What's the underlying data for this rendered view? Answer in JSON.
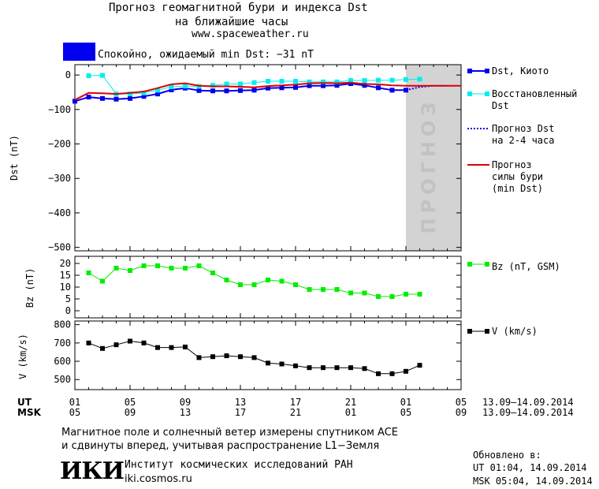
{
  "header": {
    "title_line1": "Прогноз геомагнитной бури и индекса Dst",
    "title_line2": "на ближайшие часы",
    "site": "www.spaceweather.ru",
    "status_color": "#0000ee",
    "status_text": "Спокойно, ожидаемый min Dst: −31 nT"
  },
  "legend": {
    "dst_kyoto": "Dst, Киото",
    "restored_1": "Восстановленный",
    "restored_2": "Dst",
    "forecast_1": "Прогноз Dst",
    "forecast_2": "на 2-4 часа",
    "storm_1": "Прогноз",
    "storm_2": "силы бури",
    "storm_3": "(min Dst)",
    "bz": "Bz (nT, GSM)",
    "v": "V (km/s)"
  },
  "forecast_band_label": "ПРОГНОЗ",
  "time_axis": {
    "ut_label": "UT",
    "msk_label": "MSK",
    "ut_ticks": [
      "01",
      "05",
      "09",
      "13",
      "17",
      "21",
      "01",
      "05"
    ],
    "msk_ticks": [
      "05",
      "09",
      "13",
      "17",
      "21",
      "01",
      "05",
      "09"
    ],
    "ut_range": "13.09–14.09.2014",
    "msk_range": "13.09–14.09.2014"
  },
  "footer": {
    "note_1": "Магнитное поле и солнечный ветер измерены спутником ACE",
    "note_2": "и сдвинуты вперед, учитывая распространение L1−Земля",
    "logo_text": "ИКИ",
    "institute": "Институт космических исследований РАН",
    "institute_url": "iki.cosmos.ru",
    "updated_label": "Обновлено в:",
    "updated_ut": "UT  01:04, 14.09.2014",
    "updated_msk": "MSK 05:04, 14.09.2014"
  },
  "chart_data": [
    {
      "type": "line",
      "ylabel": "Dst (nT)",
      "ylim": [
        -510,
        30
      ],
      "xlim": [
        0,
        28
      ],
      "yticks": [
        0,
        -100,
        -200,
        -300,
        -400,
        -500
      ],
      "ytick_labels": [
        "0",
        "−100",
        "−200",
        "−300",
        "−400",
        "−500"
      ],
      "forecast_band": [
        24,
        28
      ],
      "series": [
        {
          "name": "Dst, Киото",
          "color": "#0000ee",
          "marker": "square",
          "x": [
            0,
            1,
            2,
            3,
            4,
            5,
            6,
            7,
            8,
            9,
            10,
            11,
            12,
            13,
            14,
            15,
            16,
            17,
            18,
            19,
            20,
            21,
            22,
            23,
            24
          ],
          "y": [
            -76,
            -64,
            -68,
            -70,
            -68,
            -62,
            -55,
            -43,
            -38,
            -45,
            -46,
            -46,
            -45,
            -44,
            -38,
            -37,
            -36,
            -31,
            -31,
            -30,
            -25,
            -30,
            -37,
            -44,
            -44
          ]
        },
        {
          "name": "Восстановленный Dst",
          "color": "#00eeee",
          "marker": "square",
          "x": [
            1,
            2,
            3,
            4,
            5,
            6,
            7,
            8,
            9,
            10,
            11,
            12,
            13,
            14,
            15,
            16,
            17,
            18,
            19,
            20,
            21,
            22,
            23,
            24,
            25
          ],
          "y": [
            -2,
            -1,
            -55,
            -55,
            -52,
            -44,
            -34,
            -32,
            -33,
            -30,
            -26,
            -26,
            -22,
            -18,
            -18,
            -18,
            -20,
            -20,
            -20,
            -16,
            -16,
            -15,
            -15,
            -13,
            -12
          ]
        },
        {
          "name": "Прогноз Dst на 2-4 часа",
          "color": "#0000ee",
          "dash": true,
          "x": [
            24,
            25,
            26,
            27
          ],
          "y": [
            -44,
            -35,
            -31,
            -31
          ]
        },
        {
          "name": "Прогноз силы бури (min Dst)",
          "color": "#dd0000",
          "x": [
            0,
            1,
            2,
            3,
            4,
            5,
            6,
            7,
            8,
            9,
            10,
            11,
            12,
            13,
            14,
            15,
            16,
            17,
            18,
            19,
            20,
            21,
            22,
            23,
            24,
            25,
            26,
            27,
            28
          ],
          "y": [
            -72,
            -52,
            -53,
            -55,
            -52,
            -48,
            -38,
            -27,
            -24,
            -31,
            -33,
            -33,
            -34,
            -36,
            -32,
            -30,
            -28,
            -24,
            -23,
            -24,
            -22,
            -26,
            -27,
            -30,
            -31,
            -31,
            -31,
            -31,
            -31
          ]
        }
      ]
    },
    {
      "type": "line",
      "ylabel": "Bz (nT)",
      "ylim": [
        -3,
        23
      ],
      "xlim": [
        0,
        28
      ],
      "yticks": [
        0,
        5,
        10,
        15,
        20
      ],
      "ytick_labels": [
        "0",
        "5",
        "10",
        "15",
        "20"
      ],
      "series": [
        {
          "name": "Bz (nT, GSM)",
          "color": "#00ee00",
          "marker": "square",
          "x": [
            1,
            2,
            3,
            4,
            5,
            6,
            7,
            8,
            9,
            10,
            11,
            12,
            13,
            14,
            15,
            16,
            17,
            18,
            19,
            20,
            21,
            22,
            23,
            24,
            25
          ],
          "y": [
            16,
            12.5,
            18,
            17,
            19,
            19,
            18,
            18,
            19,
            16,
            13,
            11,
            11,
            13,
            12.5,
            11,
            9,
            9,
            9,
            7.5,
            7.5,
            6,
            6,
            7,
            7
          ]
        }
      ]
    },
    {
      "type": "line",
      "ylabel": "V (km/s)",
      "ylim": [
        445,
        820
      ],
      "xlim": [
        0,
        28
      ],
      "yticks": [
        500,
        600,
        700,
        800
      ],
      "ytick_labels": [
        "500",
        "600",
        "700",
        "800"
      ],
      "series": [
        {
          "name": "V (km/s)",
          "color": "#000000",
          "marker": "square",
          "x": [
            1,
            2,
            3,
            4,
            5,
            6,
            7,
            8,
            9,
            10,
            11,
            12,
            13,
            14,
            15,
            16,
            17,
            18,
            19,
            20,
            21,
            22,
            23,
            24,
            25
          ],
          "y": [
            700,
            670,
            690,
            710,
            700,
            675,
            675,
            678,
            620,
            625,
            630,
            625,
            620,
            590,
            585,
            575,
            565,
            565,
            565,
            565,
            560,
            532,
            532,
            545,
            578
          ]
        }
      ]
    }
  ]
}
